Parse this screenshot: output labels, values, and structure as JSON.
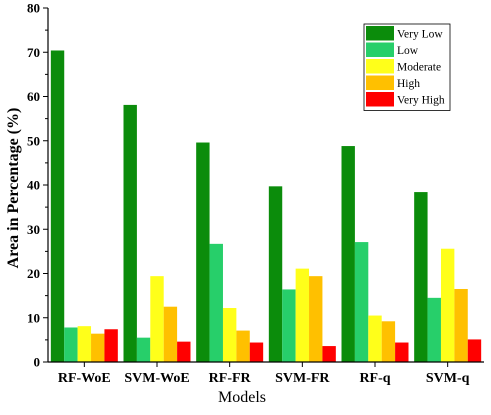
{
  "chart_data": {
    "type": "bar",
    "xlabel": "Models",
    "ylabel": "Area in Percentage (%)",
    "ylim": [
      0,
      80
    ],
    "yticks": [
      0,
      10,
      20,
      30,
      40,
      50,
      60,
      70,
      80
    ],
    "categories": [
      "RF-WoE",
      "SVM-WoE",
      "RF-FR",
      "SVM-FR",
      "RF-q",
      "SVM-q"
    ],
    "legend_position": "top-right",
    "grid": false,
    "series": [
      {
        "name": "Very Low",
        "color": "#0b8c0b",
        "values": [
          70.4,
          58.1,
          49.6,
          39.7,
          48.8,
          38.4
        ]
      },
      {
        "name": "Low",
        "color": "#27cf6a",
        "values": [
          7.8,
          5.5,
          26.7,
          16.4,
          27.1,
          14.5
        ]
      },
      {
        "name": "Moderate",
        "color": "#ffff1a",
        "values": [
          8.1,
          19.4,
          12.2,
          21.1,
          10.5,
          25.6
        ]
      },
      {
        "name": "High",
        "color": "#ffc000",
        "values": [
          6.4,
          12.5,
          7.1,
          19.4,
          9.2,
          16.5
        ]
      },
      {
        "name": "Very High",
        "color": "#ff0000",
        "values": [
          7.4,
          4.6,
          4.4,
          3.6,
          4.4,
          5.1
        ]
      }
    ]
  }
}
